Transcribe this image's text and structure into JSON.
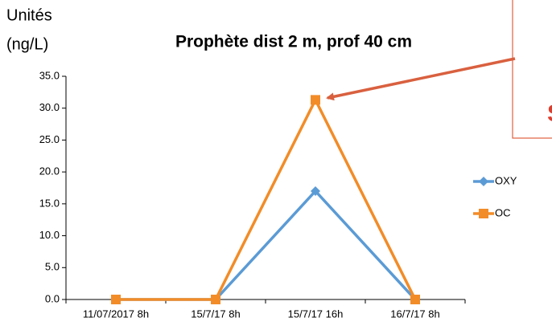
{
  "chart_data": {
    "type": "line",
    "title": "Prophète dist 2 m, prof 40 cm",
    "ylabel": [
      "Unités",
      "(ng/L)"
    ],
    "categories": [
      "11/07/2017 8h",
      "15/7/17 8h",
      "15/7/17 16h",
      "16/7/17 8h"
    ],
    "series": [
      {
        "name": "OXY",
        "color": "#5b9bd5",
        "marker": "diamond",
        "values": [
          0,
          0,
          17,
          0
        ]
      },
      {
        "name": "OC",
        "color": "#f28c28",
        "marker": "square",
        "values": [
          0,
          0,
          31.3,
          0
        ]
      }
    ],
    "ylim": [
      0,
      35
    ],
    "yticks": [
      {
        "value": 0,
        "label": "0.0"
      },
      {
        "value": 5,
        "label": "5.0"
      },
      {
        "value": 10,
        "label": "10.0"
      },
      {
        "value": 15,
        "label": "15.0"
      },
      {
        "value": 20,
        "label": "20.0"
      },
      {
        "value": 25,
        "label": "25.0"
      },
      {
        "value": 30,
        "label": "30.0"
      },
      {
        "value": 35,
        "label": "35.0"
      }
    ],
    "legend": "right",
    "annotation": "S"
  }
}
